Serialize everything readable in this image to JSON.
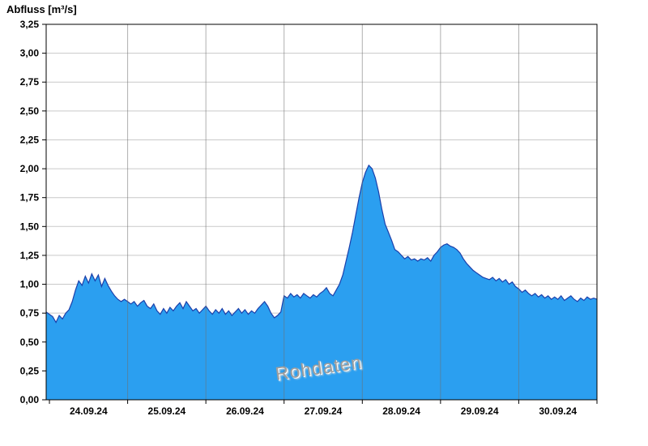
{
  "title": "Abfluss [m³/s]",
  "watermark": "Rohdaten",
  "colors": {
    "fill": "#2b9ff0",
    "line": "#1b3faa",
    "grid_h": "#c9c9c9",
    "grid_v": "#6e6e6e",
    "frame": "#000000",
    "tick_text": "#000000"
  },
  "chart_data": {
    "type": "area",
    "title": "Abfluss [m³/s]",
    "xlabel": "",
    "ylabel": "Abfluss [m³/s]",
    "ylim": [
      0,
      3.25
    ],
    "y_tick_values": [
      0,
      0.25,
      0.5,
      0.75,
      1.0,
      1.25,
      1.5,
      1.75,
      2.0,
      2.25,
      2.5,
      2.75,
      3.0,
      3.25
    ],
    "y_tick_labels": [
      "0,00",
      "0,25",
      "0,50",
      "0,75",
      "1,00",
      "1,25",
      "1,50",
      "1,75",
      "2,00",
      "2,25",
      "2,50",
      "2,75",
      "3,00",
      "3,25"
    ],
    "x_start_hours": -1,
    "x_end_hours": 168,
    "x_gridline_hours": [
      24,
      48,
      72,
      96,
      120,
      144
    ],
    "x_day_labels": [
      "24.09.24",
      "25.09.24",
      "26.09.24",
      "27.09.24",
      "28.09.24",
      "29.09.24",
      "30.09.24"
    ],
    "x_day_label_hours": [
      12,
      36,
      60,
      84,
      108,
      132,
      156
    ],
    "series_name": "Abfluss Rohdaten",
    "values_start_hour": -1,
    "values_step_hours": 1,
    "values": [
      0.76,
      0.74,
      0.72,
      0.67,
      0.73,
      0.7,
      0.75,
      0.78,
      0.85,
      0.95,
      1.03,
      0.99,
      1.07,
      1.01,
      1.09,
      1.03,
      1.08,
      0.98,
      1.05,
      0.99,
      0.94,
      0.9,
      0.87,
      0.85,
      0.87,
      0.85,
      0.83,
      0.85,
      0.81,
      0.84,
      0.86,
      0.81,
      0.79,
      0.83,
      0.77,
      0.74,
      0.79,
      0.75,
      0.8,
      0.77,
      0.81,
      0.84,
      0.79,
      0.85,
      0.81,
      0.77,
      0.79,
      0.75,
      0.78,
      0.81,
      0.77,
      0.74,
      0.78,
      0.75,
      0.79,
      0.74,
      0.77,
      0.73,
      0.76,
      0.79,
      0.75,
      0.78,
      0.74,
      0.77,
      0.75,
      0.79,
      0.82,
      0.85,
      0.81,
      0.75,
      0.71,
      0.73,
      0.76,
      0.9,
      0.88,
      0.92,
      0.89,
      0.91,
      0.88,
      0.92,
      0.9,
      0.88,
      0.91,
      0.89,
      0.92,
      0.94,
      0.97,
      0.92,
      0.9,
      0.95,
      1.0,
      1.08,
      1.2,
      1.32,
      1.45,
      1.6,
      1.75,
      1.88,
      1.97,
      2.03,
      2.0,
      1.92,
      1.8,
      1.65,
      1.52,
      1.45,
      1.38,
      1.3,
      1.28,
      1.25,
      1.22,
      1.24,
      1.21,
      1.22,
      1.2,
      1.22,
      1.21,
      1.23,
      1.2,
      1.25,
      1.28,
      1.32,
      1.34,
      1.35,
      1.33,
      1.32,
      1.3,
      1.27,
      1.22,
      1.18,
      1.15,
      1.12,
      1.1,
      1.08,
      1.06,
      1.05,
      1.04,
      1.06,
      1.03,
      1.05,
      1.02,
      1.04,
      1.0,
      1.02,
      0.98,
      0.96,
      0.93,
      0.95,
      0.92,
      0.9,
      0.92,
      0.89,
      0.91,
      0.88,
      0.9,
      0.87,
      0.89,
      0.87,
      0.9,
      0.86,
      0.88,
      0.9,
      0.87,
      0.85,
      0.88,
      0.86,
      0.89,
      0.87,
      0.88,
      0.87
    ],
    "grid": true,
    "legend": "none"
  },
  "layout_note": ""
}
